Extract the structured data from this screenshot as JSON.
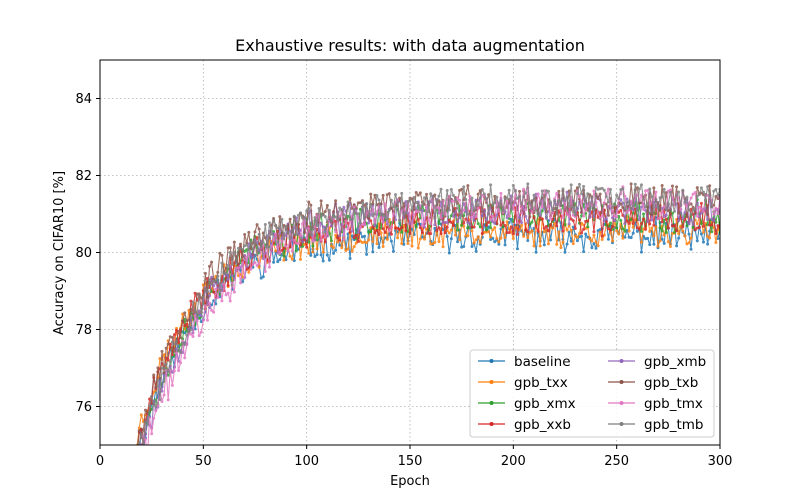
{
  "chart_data": {
    "type": "line",
    "title": "Exhaustive results: with data augmentation",
    "xlabel": "Epoch",
    "ylabel": "Accuracy on CIFAR10 [%]",
    "xlim": [
      0,
      300
    ],
    "ylim": [
      75,
      85
    ],
    "xticks": [
      0,
      50,
      100,
      150,
      200,
      250,
      300
    ],
    "yticks": [
      76,
      78,
      80,
      82,
      84
    ],
    "grid": true,
    "legend_position": "lower-right",
    "legend_columns": 2,
    "epoch_start": 18,
    "epoch_end": 300,
    "series": [
      {
        "name": "baseline",
        "color": "#1f77b4",
        "start": 74.8,
        "plateau": 80.45,
        "rate": 0.035,
        "noise": 0.38,
        "seed": 11
      },
      {
        "name": "gpb_txx",
        "color": "#ff7f0e",
        "start": 75.2,
        "plateau": 80.55,
        "rate": 0.036,
        "noise": 0.36,
        "seed": 23
      },
      {
        "name": "gpb_xmx",
        "color": "#2ca02c",
        "start": 74.6,
        "plateau": 80.95,
        "rate": 0.033,
        "noise": 0.38,
        "seed": 37
      },
      {
        "name": "gpb_xxb",
        "color": "#d62728",
        "start": 74.9,
        "plateau": 80.85,
        "rate": 0.034,
        "noise": 0.37,
        "seed": 41
      },
      {
        "name": "gpb_xmb",
        "color": "#9467bd",
        "start": 74.5,
        "plateau": 81.15,
        "rate": 0.031,
        "noise": 0.38,
        "seed": 53
      },
      {
        "name": "gpb_txb",
        "color": "#8c564b",
        "start": 75.1,
        "plateau": 81.35,
        "rate": 0.032,
        "noise": 0.36,
        "seed": 67
      },
      {
        "name": "gpb_tmx",
        "color": "#e377c2",
        "start": 74.3,
        "plateau": 81.25,
        "rate": 0.027,
        "noise": 0.4,
        "seed": 71
      },
      {
        "name": "gpb_tmb",
        "color": "#7f7f7f",
        "start": 74.7,
        "plateau": 81.4,
        "rate": 0.03,
        "noise": 0.37,
        "seed": 83
      }
    ]
  }
}
